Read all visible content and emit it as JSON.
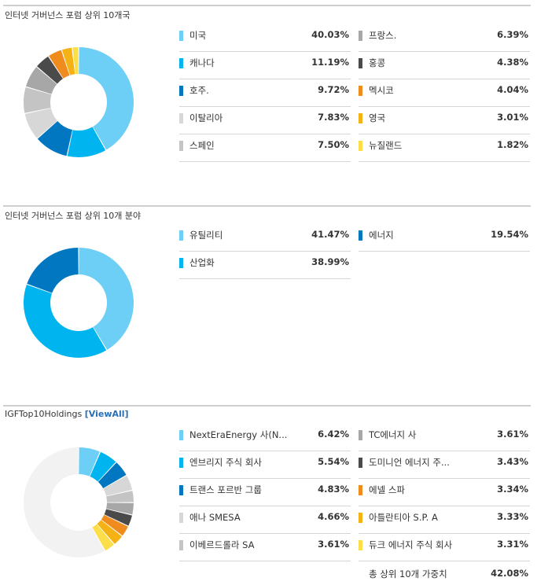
{
  "chart_data": [
    {
      "type": "pie",
      "title": "인터넷 거버넌스 포럼 상위 10개국",
      "categories": [
        "미국",
        "캐나다",
        "호주.",
        "이탈리아",
        "스페인",
        "프랑스.",
        "홍콩",
        "멕시코",
        "영국",
        "뉴질랜드"
      ],
      "values": [
        40.03,
        11.19,
        9.72,
        7.83,
        7.5,
        6.39,
        4.38,
        4.04,
        3.01,
        1.82
      ],
      "value_labels": [
        "40.03%",
        "11.19%",
        "9.72%",
        "7.83%",
        "7.50%",
        "6.39%",
        "4.38%",
        "4.04%",
        "3.01%",
        "1.82%"
      ],
      "colors": [
        "#6dcff6",
        "#00b5ef",
        "#0077c0",
        "#d7d7d7",
        "#c4c4c4",
        "#a7a7a7",
        "#4a4a4a",
        "#f08c1e",
        "#f5b214",
        "#fbde4a"
      ]
    },
    {
      "type": "pie",
      "title": "인터넷 거버넌스 포럼 상위 10개 분야",
      "categories": [
        "유틸리티",
        "산업화",
        "에너지"
      ],
      "values": [
        41.47,
        38.99,
        19.54
      ],
      "value_labels": [
        "41.47%",
        "38.99%",
        "19.54%"
      ],
      "colors": [
        "#6dcff6",
        "#00b5ef",
        "#0077c0"
      ]
    },
    {
      "type": "pie",
      "title": "IGFTop10Holdings",
      "link": "[ViewAll]",
      "categories": [
        "NextEraEnergy 사(N...",
        "엔브리지 주식 회사",
        "트랜스 포르반 그룹",
        "애나 SMESA",
        "이베르드롤라 SA",
        "TC에너지 사",
        "도미니언 에너지 주...",
        "에넬 스파",
        "아틀란티아 S.P. A",
        "듀크 에너지 주식 회사"
      ],
      "values": [
        6.42,
        5.54,
        4.83,
        4.66,
        3.61,
        3.61,
        3.43,
        3.34,
        3.33,
        3.31
      ],
      "value_labels": [
        "6.42%",
        "5.54%",
        "4.83%",
        "4.66%",
        "3.61%",
        "3.61%",
        "3.43%",
        "3.34%",
        "3.33%",
        "3.31%"
      ],
      "colors": [
        "#6dcff6",
        "#00b5ef",
        "#0077c0",
        "#d7d7d7",
        "#c4c4c4",
        "#a7a7a7",
        "#4a4a4a",
        "#f08c1e",
        "#f5b214",
        "#fbde4a"
      ],
      "remainder_color": "#f2f2f2",
      "total_label": "총 상위 10개 가중치",
      "total_value": "42.08%"
    }
  ]
}
